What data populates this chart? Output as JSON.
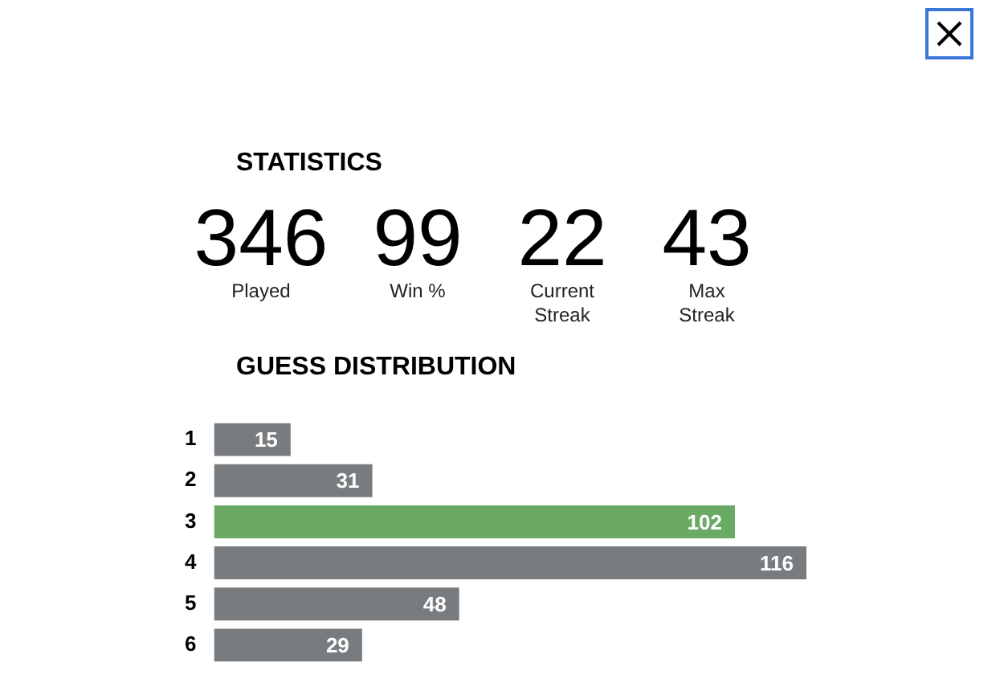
{
  "chart_data": [
    {
      "type": "other",
      "title": "STATISTICS",
      "categories": [
        "Played",
        "Win %",
        "Current Streak",
        "Max Streak"
      ],
      "values": [
        346,
        99,
        22,
        43
      ],
      "data_labels": true
    },
    {
      "type": "bar",
      "orientation": "horizontal",
      "title": "GUESS DISTRIBUTION",
      "categories": [
        "1",
        "2",
        "3",
        "4",
        "5",
        "6"
      ],
      "values": [
        15,
        31,
        102,
        116,
        48,
        29
      ],
      "colors": [
        "#787c7e",
        "#787c7e",
        "#6aaa64",
        "#787c7e",
        "#787c7e",
        "#787c7e"
      ],
      "data_labels": true,
      "grid": false,
      "legend": false
    }
  ]
}
